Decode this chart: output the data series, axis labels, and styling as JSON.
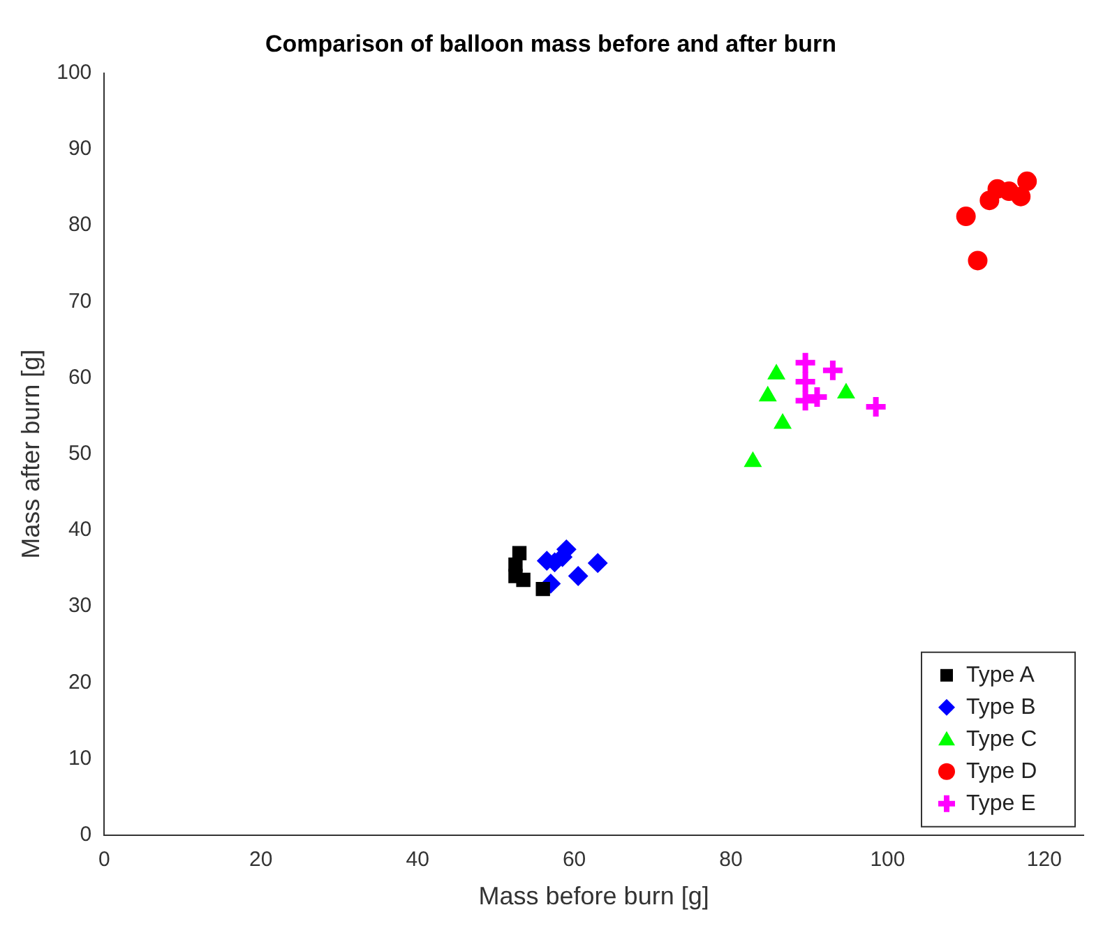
{
  "chart_data": {
    "type": "scatter",
    "title": "Comparison of balloon mass before and after burn",
    "xlabel": "Mass before burn [g]",
    "ylabel": "Mass after burn [g]",
    "xlim": [
      0,
      125
    ],
    "xticks": [
      0,
      20,
      40,
      60,
      80,
      100,
      120
    ],
    "ylim": [
      0,
      100
    ],
    "yticks": [
      0,
      10,
      20,
      30,
      40,
      50,
      60,
      70,
      80,
      90,
      100
    ],
    "grid": false,
    "legend": "bottom right",
    "series": [
      {
        "name": "Type A",
        "color": "#000000",
        "marker": "square",
        "x": [
          53,
          52.5,
          52.5,
          53.5,
          56
        ],
        "values": [
          37,
          35.5,
          34,
          33.5,
          32.3
        ]
      },
      {
        "name": "Type B",
        "color": "#0000ff",
        "marker": "diamond",
        "x": [
          56.5,
          57.5,
          59,
          58.5,
          57,
          60.5,
          63
        ],
        "values": [
          36,
          35.8,
          37.5,
          36.5,
          33,
          34,
          35.7
        ]
      },
      {
        "name": "Type C",
        "color": "#00ff00",
        "marker": "triangle",
        "x": [
          85.8,
          84.7,
          86.6,
          82.8,
          94.7
        ],
        "values": [
          60.5,
          57.6,
          54,
          49,
          58
        ]
      },
      {
        "name": "Type D",
        "color": "#ff0000",
        "marker": "circle",
        "x": [
          110,
          111.5,
          113,
          114,
          115.5,
          117,
          117.8
        ],
        "values": [
          81.2,
          75.4,
          83.3,
          84.8,
          84.5,
          83.8,
          85.8
        ]
      },
      {
        "name": "Type E",
        "color": "#ff00ff",
        "marker": "cross",
        "x": [
          89.5,
          93,
          89.5,
          91,
          89.5,
          98.5
        ],
        "values": [
          62,
          61,
          59.5,
          57.5,
          57,
          56.2
        ]
      }
    ]
  }
}
